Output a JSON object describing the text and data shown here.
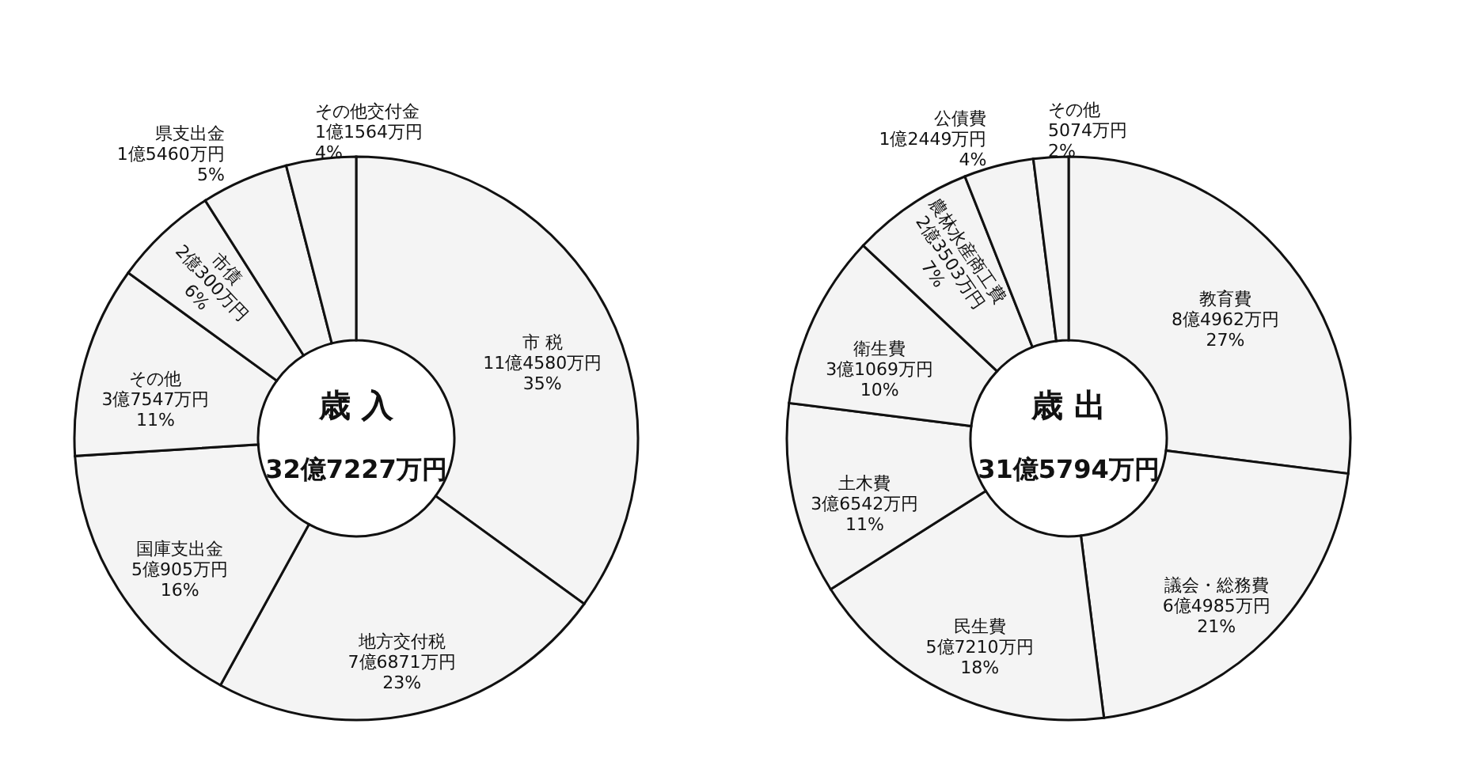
{
  "chart_data": [
    {
      "type": "donut",
      "title": "歳 入",
      "subtitle": "32億7227万円",
      "categories": [
        "市 税",
        "地方交付税",
        "国庫支出金",
        "その他",
        "市債",
        "県支出金",
        "その他交付金"
      ],
      "values": [
        35,
        23,
        16,
        11,
        6,
        5,
        4
      ],
      "colors": [
        "#f4f4f4",
        "#f4f4f4",
        "#f4f4f4",
        "#f4f4f4",
        "#f4f4f4",
        "#f4f4f4",
        "#f4f4f4"
      ],
      "value_labels": [
        "11億4580万円\n35%",
        "7億6871万円\n23%",
        "5億905万円\n16%",
        "3億7547万円\n11%",
        "2億300万円\n6%",
        "1億5460万円\n5%",
        "1億1564万円\n4%"
      ],
      "legend": false
    },
    {
      "type": "donut",
      "title": "歳 出",
      "subtitle": "31億5794万円",
      "categories": [
        "教育費",
        "議会・総務費",
        "民生費",
        "土木費",
        "衛生費",
        "農林水産商工費",
        "公債費",
        "その他"
      ],
      "values": [
        27,
        21,
        18,
        11,
        10,
        7,
        4,
        2
      ],
      "colors": [
        "#f4f4f4",
        "#f4f4f4",
        "#f4f4f4",
        "#f4f4f4",
        "#f4f4f4",
        "#f4f4f4",
        "#f4f4f4",
        "#f4f4f4"
      ],
      "value_labels": [
        "8億4962万円\n27%",
        "6億4985万円\n21%",
        "5億7210万円\n18%",
        "3億6542万円\n11%",
        "3億1069万円\n10%",
        "2億3503万円\n7%",
        "1億2449万円\n4%",
        "5074万円\n2%"
      ],
      "legend": false
    }
  ]
}
